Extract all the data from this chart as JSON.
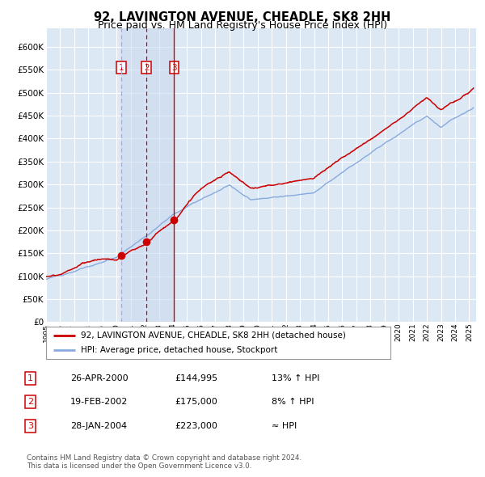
{
  "title": "92, LAVINGTON AVENUE, CHEADLE, SK8 2HH",
  "subtitle": "Price paid vs. HM Land Registry's House Price Index (HPI)",
  "title_fontsize": 10.5,
  "subtitle_fontsize": 9.0,
  "background_color": "#dce9f5",
  "grid_color": "#ffffff",
  "ytick_values": [
    0,
    50000,
    100000,
    150000,
    200000,
    250000,
    300000,
    350000,
    400000,
    450000,
    500000,
    550000,
    600000
  ],
  "ylim": [
    0,
    640000
  ],
  "xlim_start": 1995.0,
  "xlim_end": 2025.5,
  "sale_dates": [
    2000.32,
    2002.13,
    2004.08
  ],
  "sale_prices": [
    144995,
    175000,
    223000
  ],
  "sale_labels": [
    "1",
    "2",
    "3"
  ],
  "legend_entries": [
    "92, LAVINGTON AVENUE, CHEADLE, SK8 2HH (detached house)",
    "HPI: Average price, detached house, Stockport"
  ],
  "legend_colors": [
    "#cc0000",
    "#88aadd"
  ],
  "table_rows": [
    [
      "1",
      "26-APR-2000",
      "£144,995",
      "13% ↑ HPI"
    ],
    [
      "2",
      "19-FEB-2002",
      "£175,000",
      "8% ↑ HPI"
    ],
    [
      "3",
      "28-JAN-2004",
      "£223,000",
      "≈ HPI"
    ]
  ],
  "footnote": "Contains HM Land Registry data © Crown copyright and database right 2024.\nThis data is licensed under the Open Government Licence v3.0.",
  "red_line_color": "#cc0000",
  "blue_line_color": "#88aadd",
  "sale_dot_color": "#cc0000",
  "vline1_color": "#aaaacc",
  "vline2_color": "#cc0000",
  "vline3_color": "#cc0000"
}
